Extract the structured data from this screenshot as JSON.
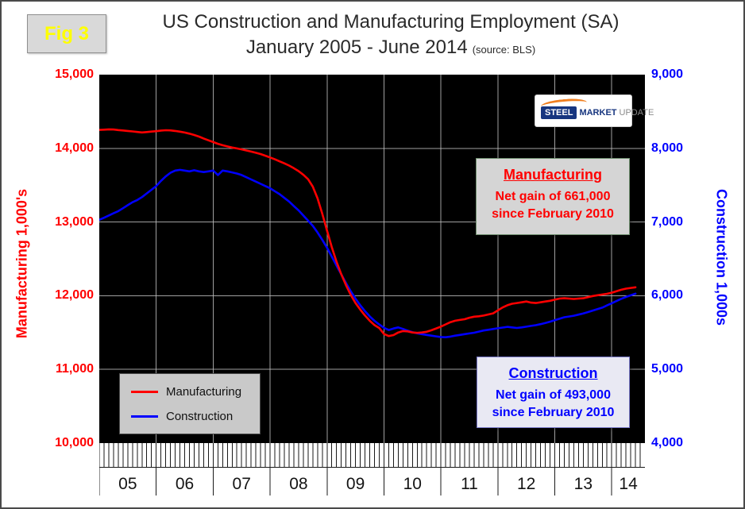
{
  "chart_data": {
    "type": "line",
    "fig_label": "Fig 3",
    "title": "US Construction and Manufacturing Employment (SA)",
    "subtitle": "January 2005 - June 2014",
    "source_note": "(source: BLS)",
    "plot_bg": "#000000",
    "grid": true,
    "x_start": 2005.0,
    "x_interval_months": 1,
    "x_axis": {
      "range": [
        2005.0,
        2014.583
      ],
      "year_labels": [
        "05",
        "06",
        "07",
        "08",
        "09",
        "10",
        "11",
        "12",
        "13",
        "14"
      ],
      "minor_tick": "monthly"
    },
    "left_axis": {
      "label": "Manufacturing 1,000's",
      "lim": [
        10000,
        15000
      ],
      "tick_labels": [
        "15,000",
        "14,000",
        "13,000",
        "12,000",
        "11,000",
        "10,000"
      ],
      "color": "#ff0000"
    },
    "right_axis": {
      "label": "Construction 1,000s",
      "lim": [
        4000,
        9000
      ],
      "tick_labels": [
        "9,000",
        "8,000",
        "7,000",
        "6,000",
        "5,000",
        "4,000"
      ],
      "color": "#0000ff"
    },
    "legend": {
      "position": "bottom-left",
      "items": [
        {
          "label": "Manufacturing",
          "color": "#ff0000"
        },
        {
          "label": "Construction",
          "color": "#0000ff"
        }
      ]
    },
    "annotations": [
      {
        "title": "Manufacturing",
        "line1": "Net gain of 661,000",
        "line2": "since February 2010",
        "color": "#ff0000"
      },
      {
        "title": "Construction",
        "line1": "Net gain of 493,000",
        "line2": "since February 2010",
        "color": "#0000ff"
      }
    ],
    "logo": {
      "steel": "STEEL",
      "market": "MARKET",
      "update": "UPDATE"
    },
    "series": [
      {
        "name": "Manufacturing",
        "axis": "left",
        "color": "#ff0000",
        "values": [
          14250,
          14253,
          14258,
          14255,
          14248,
          14242,
          14236,
          14229,
          14222,
          14216,
          14221,
          14227,
          14233,
          14241,
          14246,
          14243,
          14236,
          14226,
          14214,
          14199,
          14181,
          14159,
          14134,
          14109,
          14085,
          14061,
          14042,
          14026,
          14011,
          13999,
          13986,
          13971,
          13956,
          13940,
          13922,
          13900,
          13876,
          13851,
          13823,
          13796,
          13766,
          13731,
          13691,
          13641,
          13581,
          13481,
          13321,
          13111,
          12881,
          12661,
          12461,
          12291,
          12141,
          12011,
          11901,
          11811,
          11731,
          11661,
          11601,
          11561,
          11481,
          11453,
          11466,
          11501,
          11521,
          11516,
          11501,
          11496,
          11501,
          11511,
          11531,
          11556,
          11581,
          11611,
          11641,
          11661,
          11671,
          11681,
          11701,
          11716,
          11721,
          11731,
          11746,
          11761,
          11801,
          11841,
          11871,
          11891,
          11901,
          11911,
          11921,
          11906,
          11901,
          11911,
          11921,
          11931,
          11946,
          11961,
          11966,
          11961,
          11956,
          11961,
          11966,
          11981,
          11996,
          12006,
          12016,
          12026,
          12041,
          12061,
          12081,
          12096,
          12106,
          12114
        ]
      },
      {
        "name": "Construction",
        "axis": "right",
        "color": "#0000ff",
        "values": [
          7030,
          7058,
          7088,
          7118,
          7148,
          7188,
          7228,
          7268,
          7298,
          7338,
          7388,
          7438,
          7488,
          7558,
          7618,
          7668,
          7698,
          7708,
          7698,
          7688,
          7703,
          7688,
          7678,
          7688,
          7698,
          7638,
          7698,
          7688,
          7673,
          7658,
          7638,
          7608,
          7578,
          7548,
          7518,
          7488,
          7458,
          7418,
          7378,
          7328,
          7278,
          7218,
          7158,
          7088,
          7018,
          6948,
          6858,
          6758,
          6650,
          6530,
          6410,
          6290,
          6170,
          6060,
          5960,
          5870,
          5790,
          5720,
          5660,
          5610,
          5565,
          5535,
          5555,
          5570,
          5550,
          5525,
          5505,
          5490,
          5478,
          5468,
          5458,
          5448,
          5440,
          5436,
          5445,
          5458,
          5468,
          5478,
          5488,
          5498,
          5513,
          5528,
          5538,
          5548,
          5558,
          5568,
          5578,
          5570,
          5562,
          5570,
          5580,
          5590,
          5600,
          5614,
          5630,
          5648,
          5668,
          5688,
          5708,
          5718,
          5728,
          5744,
          5760,
          5778,
          5798,
          5818,
          5838,
          5868,
          5898,
          5928,
          5958,
          5983,
          6005,
          6028
        ]
      }
    ]
  }
}
